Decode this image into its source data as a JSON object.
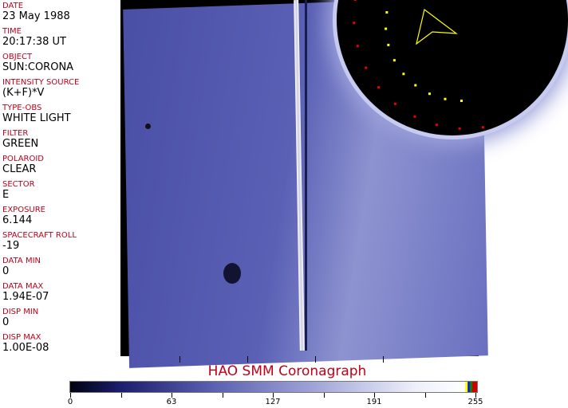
{
  "fields": [
    {
      "label": "DATE",
      "value": "23 May 1988"
    },
    {
      "label": "TIME",
      "value": "20:17:38 UT"
    },
    {
      "label": "OBJECT",
      "value": "SUN:CORONA"
    },
    {
      "label": "INTENSITY SOURCE",
      "value": "(K+F)*V"
    },
    {
      "label": "TYPE-OBS",
      "value": "WHITE LIGHT"
    },
    {
      "label": "FILTER",
      "value": "GREEN"
    },
    {
      "label": "POLAROID",
      "value": "CLEAR"
    },
    {
      "label": "SECTOR",
      "value": "E"
    },
    {
      "label": "EXPOSURE",
      "value": "6.144"
    },
    {
      "label": "SPACECRAFT ROLL",
      "value": "-19"
    },
    {
      "label": "DATA MIN",
      "value": "0"
    },
    {
      "label": "DATA MAX",
      "value": "1.94E-07"
    },
    {
      "label": "DISP MIN",
      "value": "0"
    },
    {
      "label": "DISP MAX",
      "value": "1.00E-08"
    }
  ],
  "title": "HAO  SMM Coronagraph",
  "colorbar": {
    "ticks": [
      "0",
      "63",
      "127",
      "191",
      "255"
    ],
    "range": [
      0,
      255
    ],
    "colors": {
      "low": "#000010",
      "mid": "#5a5fb0",
      "high": "#ffffff"
    }
  },
  "label_color": "#c0001a"
}
